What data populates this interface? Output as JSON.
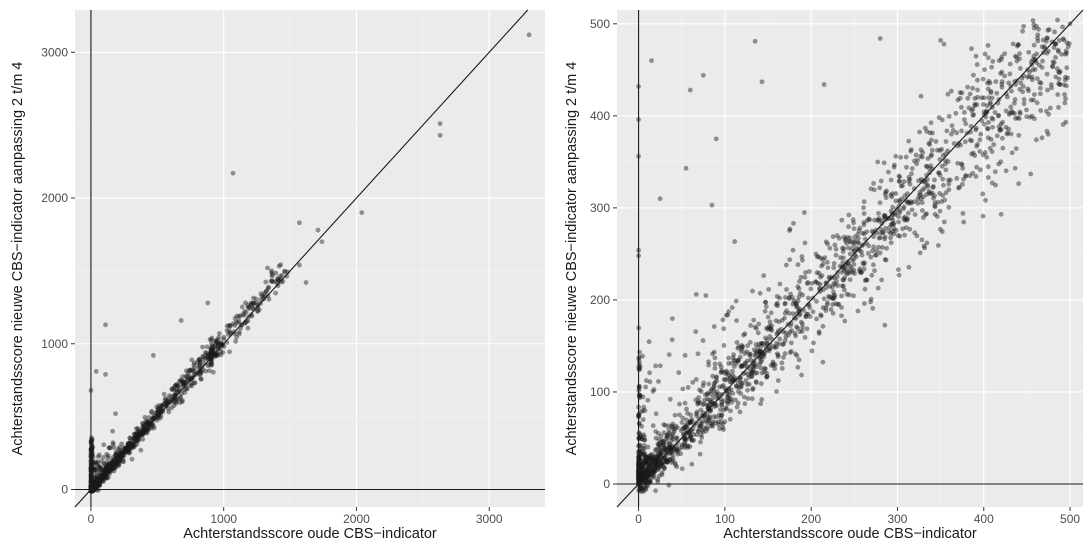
{
  "colors": {
    "panel": "#ebebeb",
    "grid": "#ffffff",
    "point": "#1a1a1a",
    "point_opacity": 0.45,
    "reference_lines": "#1a1a1a"
  },
  "chart_data": [
    {
      "type": "scatter",
      "title": "",
      "xlabel": "Achterstandsscore oude CBS−indicator",
      "ylabel": "Achterstandsscore nieuwe CBS−indicator aanpassing 2 t/m 4",
      "xlim": [
        -120,
        3420
      ],
      "ylim": [
        -120,
        3290
      ],
      "xticks": [
        0,
        1000,
        2000,
        3000
      ],
      "yticks": [
        0,
        1000,
        2000,
        3000
      ],
      "xtick_labels": [
        "0",
        "1000",
        "2000",
        "3000"
      ],
      "ytick_labels": [
        "0",
        "1000",
        "2000",
        "3000"
      ],
      "grid": true,
      "reference_lines": [
        "x = 0",
        "y = 0",
        "y = x"
      ],
      "highlighted_points": [
        {
          "x": 3300,
          "y": 3120
        },
        {
          "x": 2630,
          "y": 2510
        },
        {
          "x": 2630,
          "y": 2430
        },
        {
          "x": 1070,
          "y": 2170
        },
        {
          "x": 2040,
          "y": 1900
        },
        {
          "x": 1570,
          "y": 1830
        },
        {
          "x": 1710,
          "y": 1780
        },
        {
          "x": 1740,
          "y": 1700
        },
        {
          "x": 1570,
          "y": 1540
        },
        {
          "x": 1330,
          "y": 1520
        },
        {
          "x": 1620,
          "y": 1420
        },
        {
          "x": 880,
          "y": 1280
        },
        {
          "x": 110,
          "y": 1130
        },
        {
          "x": 680,
          "y": 1160
        },
        {
          "x": 470,
          "y": 920
        },
        {
          "x": 0,
          "y": 680
        },
        {
          "x": 110,
          "y": 790
        },
        {
          "x": 40,
          "y": 810
        }
      ]
    },
    {
      "type": "scatter",
      "title": "",
      "xlabel": "Achterstandsscore oude CBS−indicator",
      "ylabel": "Achterstandsscore nieuwe CBS−indicator aanpassing 2 t/m 4",
      "xlim": [
        -25,
        515
      ],
      "ylim": [
        -25,
        515
      ],
      "xticks": [
        0,
        100,
        200,
        300,
        400,
        500
      ],
      "yticks": [
        0,
        100,
        200,
        300,
        400,
        500
      ],
      "xtick_labels": [
        "0",
        "100",
        "200",
        "300",
        "400",
        "500"
      ],
      "ytick_labels": [
        "0",
        "100",
        "200",
        "300",
        "400",
        "500"
      ],
      "grid": true,
      "reference_lines": [
        "x = 0",
        "y = 0",
        "y = x"
      ],
      "highlighted_points": [
        {
          "x": 0,
          "y": 432
        },
        {
          "x": 0,
          "y": 396
        },
        {
          "x": 0,
          "y": 356
        },
        {
          "x": 0,
          "y": 254
        },
        {
          "x": 0,
          "y": 248
        },
        {
          "x": 15,
          "y": 460
        },
        {
          "x": 25,
          "y": 310
        },
        {
          "x": 55,
          "y": 343
        },
        {
          "x": 60,
          "y": 428
        },
        {
          "x": 75,
          "y": 444
        },
        {
          "x": 90,
          "y": 375
        },
        {
          "x": 85,
          "y": 303
        },
        {
          "x": 135,
          "y": 481
        },
        {
          "x": 143,
          "y": 437
        },
        {
          "x": 215,
          "y": 434
        },
        {
          "x": 280,
          "y": 484
        },
        {
          "x": 350,
          "y": 482
        },
        {
          "x": 445,
          "y": 492
        },
        {
          "x": 500,
          "y": 500
        }
      ]
    }
  ]
}
